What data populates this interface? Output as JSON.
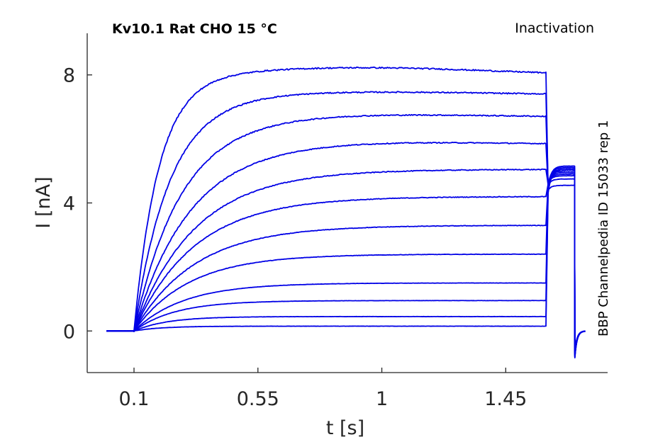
{
  "chart_data": {
    "type": "line",
    "title": "Kv10.1  Rat  CHO  15 °C",
    "subtitle": "Inactivation",
    "side_label": "BBP Channelpedia ID 15033 rep 1",
    "xlabel": "t [s]",
    "ylabel": "I [nA]",
    "xlim": [
      -0.07,
      1.82
    ],
    "ylim": [
      -1.3,
      9.3
    ],
    "xticks": [
      0.1,
      0.55,
      1,
      1.45
    ],
    "xtick_labels": [
      "0.1",
      "0.55",
      "1",
      "1.45"
    ],
    "yticks": [
      0,
      4,
      8
    ],
    "ytick_labels": [
      "0",
      "4",
      "8"
    ],
    "grid": false,
    "legend": "none",
    "color": "#0000e6",
    "protocol": {
      "baseline_start": 0.0,
      "pulse_start": 0.1,
      "pulse_end": 1.6,
      "tail_end": 1.7,
      "trace_end": 1.74
    },
    "series": [
      {
        "pulse_end_value": 0.15,
        "tail_value": 4.55,
        "tau": 0.1,
        "overshoot": 0.0
      },
      {
        "pulse_end_value": 0.45,
        "tail_value": 4.75,
        "tau": 0.12,
        "overshoot": 0.0
      },
      {
        "pulse_end_value": 0.95,
        "tail_value": 4.85,
        "tau": 0.15,
        "overshoot": 0.0
      },
      {
        "pulse_end_value": 1.5,
        "tail_value": 4.9,
        "tau": 0.18,
        "overshoot": 0.0
      },
      {
        "pulse_end_value": 2.4,
        "tail_value": 4.95,
        "tau": 0.2,
        "overshoot": 0.0
      },
      {
        "pulse_end_value": 3.3,
        "tail_value": 5.0,
        "tau": 0.22,
        "overshoot": 0.0
      },
      {
        "pulse_end_value": 4.2,
        "tail_value": 5.05,
        "tau": 0.22,
        "overshoot": 0.0
      },
      {
        "pulse_end_value": 5.05,
        "tail_value": 5.1,
        "tau": 0.22,
        "overshoot": 0.0
      },
      {
        "pulse_end_value": 5.85,
        "tail_value": 5.1,
        "tau": 0.2,
        "overshoot": 0.1
      },
      {
        "pulse_end_value": 6.7,
        "tail_value": 5.15,
        "tau": 0.17,
        "overshoot": 0.1
      },
      {
        "pulse_end_value": 7.4,
        "tail_value": 5.15,
        "tau": 0.13,
        "overshoot": 0.1
      },
      {
        "pulse_end_value": 8.05,
        "tail_value": 5.05,
        "tau": 0.09,
        "overshoot": 0.25
      }
    ]
  }
}
